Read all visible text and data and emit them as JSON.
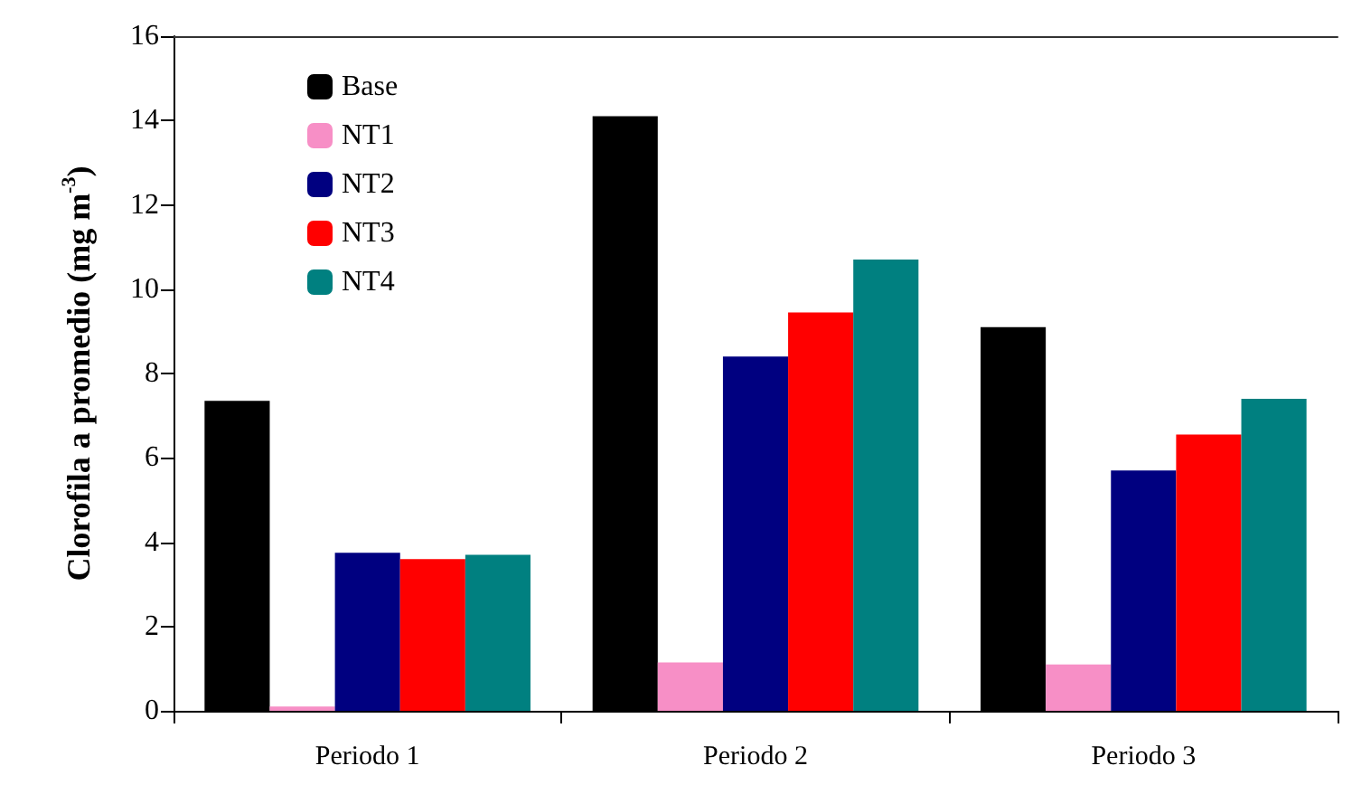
{
  "chart_data": {
    "type": "bar",
    "ylabel": "Clorofila a promedio (mg m$^{-3}$)",
    "categories": [
      "Periodo 1",
      "Periodo 2",
      "Periodo 3"
    ],
    "series": [
      {
        "name": "Base",
        "color": "#000000",
        "values": [
          7.35,
          14.1,
          9.1
        ]
      },
      {
        "name": "NT1",
        "color": "#f78fc6",
        "values": [
          0.1,
          1.15,
          1.1
        ]
      },
      {
        "name": "NT2",
        "color": "#000080",
        "values": [
          3.75,
          8.4,
          5.7
        ]
      },
      {
        "name": "NT3",
        "color": "#ff0000",
        "values": [
          3.6,
          9.45,
          6.55
        ]
      },
      {
        "name": "NT4",
        "color": "#008080",
        "values": [
          3.7,
          10.7,
          7.4
        ]
      }
    ],
    "ylim": [
      0,
      16
    ],
    "yticks": [
      0,
      2,
      4,
      6,
      8,
      10,
      12,
      14,
      16
    ],
    "grid": false,
    "legend": "top left"
  }
}
